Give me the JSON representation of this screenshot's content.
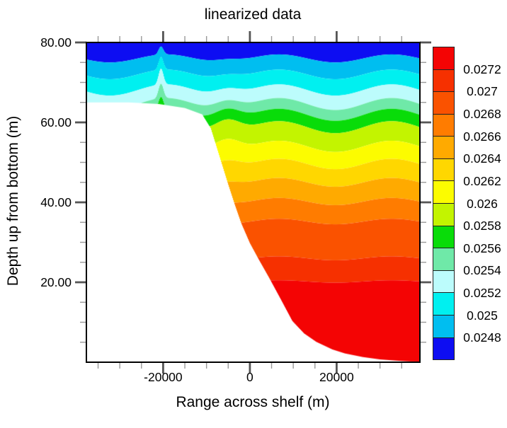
{
  "chart_data": {
    "type": "filled_contour",
    "title": "linearized data",
    "xlabel": "Range across shelf (m)",
    "ylabel": "Depth up from bottom (m)",
    "x_range": [
      -37700,
      39200
    ],
    "y_range": [
      0,
      80
    ],
    "x_major_ticks": [
      -20000,
      0,
      20000
    ],
    "x_major_tick_labels": [
      "-20000",
      "0",
      "20000"
    ],
    "x_minor_tick_step": 5000,
    "y_major_ticks": [
      80,
      60,
      40,
      20
    ],
    "y_major_tick_labels": [
      "80.00",
      "60.00",
      "40.00",
      "20.00"
    ],
    "y_minor_tick_step": 5,
    "grid": false,
    "contour_levels": [
      0.0248,
      0.025,
      0.0252,
      0.0254,
      0.0256,
      0.0258,
      0.026,
      0.0262,
      0.0264,
      0.0266,
      0.0268,
      0.027,
      0.0272
    ],
    "band_colors_low_to_high": [
      "#0D0DF2",
      "#00BEF0",
      "#00F0F0",
      "#BCFCFC",
      "#6FE9A8",
      "#09DC09",
      "#C3F400",
      "#FCFC00",
      "#FFD700",
      "#FFAA00",
      "#FF7C00",
      "#FA5200",
      "#F63000",
      "#F40404"
    ],
    "colorbar_labels_top_to_bottom": [
      "0.0272",
      "0.027",
      "0.0268",
      "0.0266",
      "0.0264",
      "0.0262",
      "0.026",
      "0.0258",
      "0.0256",
      "0.0254",
      "0.0252",
      "0.025",
      "0.0248"
    ],
    "bathymetry_profile_xz": [
      [
        -37700,
        65.0
      ],
      [
        -28000,
        65.0
      ],
      [
        -21000,
        64.6
      ],
      [
        -15000,
        63.6
      ],
      [
        -11000,
        62.0
      ],
      [
        -9000,
        58.5
      ],
      [
        -7000,
        51.5
      ],
      [
        -5000,
        44.5
      ],
      [
        -3500,
        39.5
      ],
      [
        -2000,
        34.8
      ],
      [
        0,
        29.8
      ],
      [
        2000,
        25.8
      ],
      [
        4400,
        21.2
      ],
      [
        7000,
        16.0
      ],
      [
        9800,
        10.3
      ],
      [
        12500,
        7.2
      ],
      [
        15300,
        5.1
      ],
      [
        19000,
        3.2
      ],
      [
        21900,
        2.2
      ],
      [
        26000,
        1.3
      ],
      [
        30000,
        0.7
      ],
      [
        35000,
        0.3
      ],
      [
        39200,
        0.05
      ]
    ],
    "isopycnal_model": {
      "comment_units": "height above bottom in m for each contour level at the right edge, plus perturbations",
      "base_heights_m": [
        76.0,
        72.0,
        68.1,
        64.6,
        61.9,
        58.8,
        54.0,
        49.6,
        45.0,
        40.2,
        35.2,
        26.0,
        20.2
      ],
      "spike": {
        "center_x": -20500,
        "width_x": 800,
        "amps_m": [
          2.0,
          3.2,
          4.0,
          3.6,
          3.0,
          2.2,
          1.2,
          0.6,
          0.2,
          0,
          0,
          0,
          0
        ]
      },
      "slope_bump": {
        "center_x": -5200,
        "width_x": 4200,
        "amps_m": [
          0.8,
          1.2,
          1.8,
          2.4,
          3.0,
          3.4,
          3.2,
          2.2,
          1.2,
          0.5,
          0.1,
          0,
          0
        ]
      },
      "undulation": {
        "wavelength_x": 26000,
        "amps_m": [
          1.0,
          1.2,
          1.4,
          1.5,
          1.5,
          1.5,
          1.4,
          1.3,
          1.1,
          0.9,
          0.7,
          0.5,
          0.3
        ]
      }
    },
    "styles": {
      "frame_color": "#000000",
      "major_tick_color": "#555555",
      "minor_tick_color": "#999999",
      "background_color": "#ffffff",
      "below_bathymetry_color": "#ffffff"
    }
  }
}
